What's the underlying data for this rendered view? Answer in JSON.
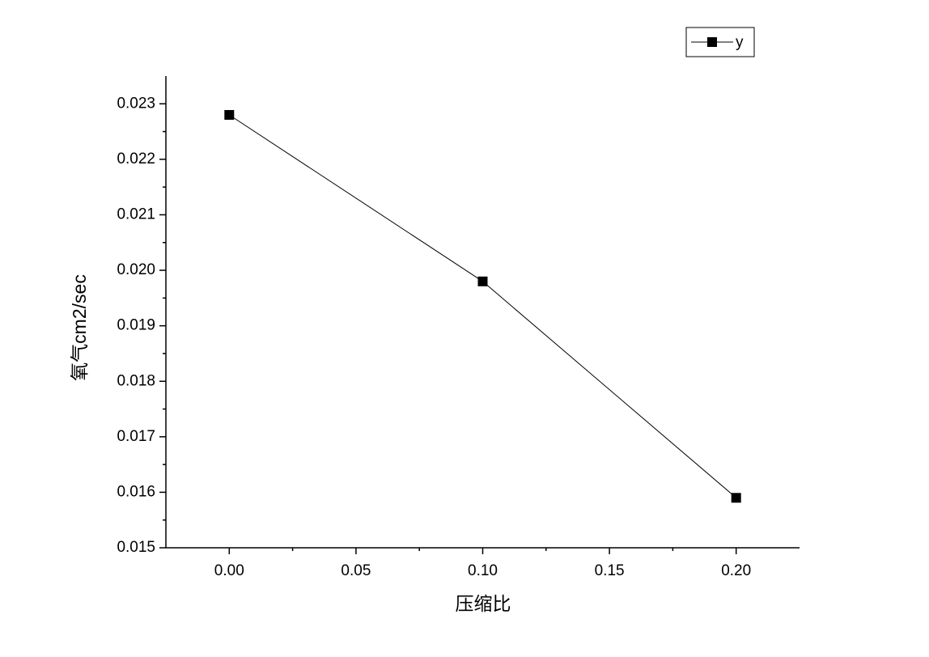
{
  "chart_data": {
    "type": "line",
    "x": [
      0,
      0.1,
      0.2
    ],
    "series": [
      {
        "name": "y",
        "color": "#000000",
        "values": [
          0.0228,
          0.0198,
          0.0159
        ]
      }
    ],
    "x_label": "压缩比",
    "y_label": "氧气cm2/sec",
    "xlim": [
      -0.025,
      0.225
    ],
    "ylim": [
      0.015,
      0.0235
    ],
    "xticks": [
      {
        "value": 0,
        "label": "0.00"
      },
      {
        "value": 0.05,
        "label": "0.05"
      },
      {
        "value": 0.1,
        "label": "0.10"
      },
      {
        "value": 0.15,
        "label": "0.15"
      },
      {
        "value": 0.2,
        "label": "0.20"
      }
    ],
    "yticks": [
      0.015,
      0.016,
      0.017,
      0.018,
      0.019,
      {
        "value": 0.02,
        "label": "0.020"
      },
      0.021,
      0.022,
      0.023
    ],
    "grid": false,
    "legend": "top-right"
  }
}
